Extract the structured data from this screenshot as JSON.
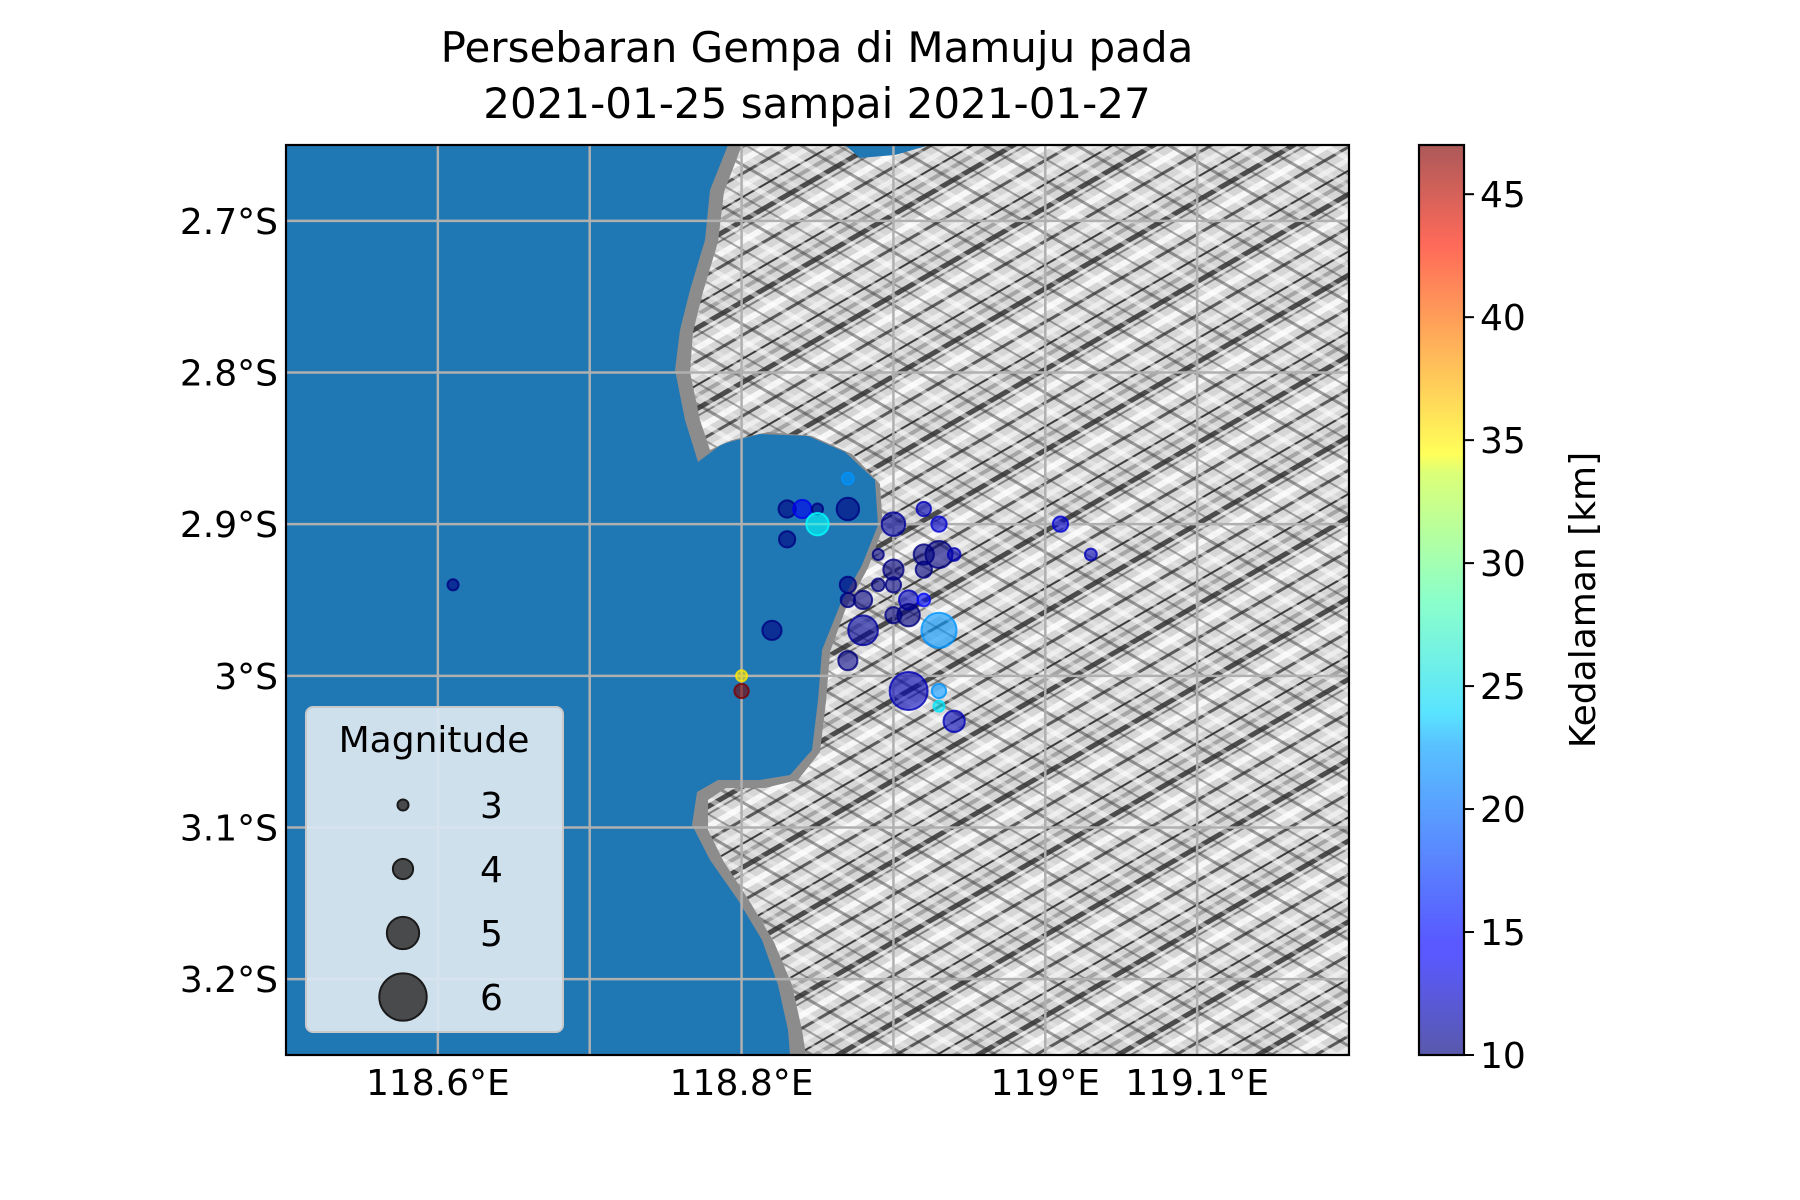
{
  "chart_data": {
    "type": "scatter",
    "title_line1": "Persebaran Gempa di Mamuju pada",
    "title_line2": "2021-01-25 sampai 2021-01-27",
    "xlim": [
      118.5,
      119.2
    ],
    "ylim": [
      -3.25,
      -2.65
    ],
    "x_ticks": [
      118.6,
      118.8,
      119.0,
      119.1
    ],
    "x_tick_labels": [
      "118.6°E",
      "118.8°E",
      "119°E",
      "119.1°E"
    ],
    "y_ticks": [
      -2.7,
      -2.8,
      -2.9,
      -3.0,
      -3.1,
      -3.2
    ],
    "y_tick_labels": [
      "2.7°S",
      "2.8°S",
      "2.9°S",
      "3°S",
      "3.1°S",
      "3.2°S"
    ],
    "grid_lons": [
      118.6,
      118.7,
      118.8,
      118.9,
      119.0,
      119.1
    ],
    "grid_lats": [
      -2.7,
      -2.8,
      -2.9,
      -3.0,
      -3.1,
      -3.2
    ],
    "grid": true,
    "colorbar": {
      "label": "Kedalaman [km]",
      "min": 10,
      "max": 47,
      "ticks": [
        10,
        15,
        20,
        25,
        30,
        35,
        40,
        45
      ],
      "colormap": "jet"
    },
    "legend": {
      "title": "Magnitude",
      "position": "lower-left",
      "entries": [
        {
          "label": "3",
          "magnitude": 3
        },
        {
          "label": "4",
          "magnitude": 4
        },
        {
          "label": "5",
          "magnitude": 5
        },
        {
          "label": "6",
          "magnitude": 6
        }
      ]
    },
    "colors": {
      "sea": "#1f77b4",
      "land": "#cfcfcf",
      "land_shadow": "#8a8a8a",
      "grid": "#b0b0b0",
      "legend_bg": "#d9e6f0"
    },
    "points": [
      {
        "lon": 118.61,
        "lat": -2.94,
        "depth": 10,
        "mag": 3.0
      },
      {
        "lon": 118.8,
        "lat": -3.0,
        "depth": 34,
        "mag": 3.0
      },
      {
        "lon": 118.8,
        "lat": -3.01,
        "depth": 47,
        "mag": 3.4
      },
      {
        "lon": 118.83,
        "lat": -2.89,
        "depth": 10,
        "mag": 3.7
      },
      {
        "lon": 118.83,
        "lat": -2.91,
        "depth": 10,
        "mag": 3.6
      },
      {
        "lon": 118.84,
        "lat": -2.89,
        "depth": 14,
        "mag": 3.8
      },
      {
        "lon": 118.85,
        "lat": -2.89,
        "depth": 10,
        "mag": 3.0
      },
      {
        "lon": 118.85,
        "lat": -2.9,
        "depth": 24,
        "mag": 4.2
      },
      {
        "lon": 118.87,
        "lat": -2.87,
        "depth": 20,
        "mag": 3.1
      },
      {
        "lon": 118.87,
        "lat": -2.89,
        "depth": 10,
        "mag": 4.2
      },
      {
        "lon": 118.82,
        "lat": -2.97,
        "depth": 10,
        "mag": 3.9
      },
      {
        "lon": 118.87,
        "lat": -2.94,
        "depth": 10,
        "mag": 3.6
      },
      {
        "lon": 118.87,
        "lat": -2.95,
        "depth": 10,
        "mag": 3.4
      },
      {
        "lon": 118.88,
        "lat": -2.95,
        "depth": 10,
        "mag": 3.8
      },
      {
        "lon": 118.88,
        "lat": -2.97,
        "depth": 11,
        "mag": 4.8
      },
      {
        "lon": 118.87,
        "lat": -2.99,
        "depth": 10,
        "mag": 3.9
      },
      {
        "lon": 118.89,
        "lat": -2.92,
        "depth": 10,
        "mag": 3.0
      },
      {
        "lon": 118.89,
        "lat": -2.94,
        "depth": 10,
        "mag": 3.2
      },
      {
        "lon": 118.9,
        "lat": -2.9,
        "depth": 11,
        "mag": 4.3
      },
      {
        "lon": 118.9,
        "lat": -2.93,
        "depth": 10,
        "mag": 4.0
      },
      {
        "lon": 118.9,
        "lat": -2.94,
        "depth": 10,
        "mag": 3.5
      },
      {
        "lon": 118.9,
        "lat": -2.96,
        "depth": 10,
        "mag": 3.6
      },
      {
        "lon": 118.91,
        "lat": -2.95,
        "depth": 12,
        "mag": 3.9
      },
      {
        "lon": 118.91,
        "lat": -2.96,
        "depth": 10,
        "mag": 4.2
      },
      {
        "lon": 118.92,
        "lat": -2.89,
        "depth": 12,
        "mag": 3.4
      },
      {
        "lon": 118.92,
        "lat": -2.92,
        "depth": 10,
        "mag": 4.0
      },
      {
        "lon": 118.92,
        "lat": -2.93,
        "depth": 10,
        "mag": 3.6
      },
      {
        "lon": 118.92,
        "lat": -2.95,
        "depth": 15,
        "mag": 3.2
      },
      {
        "lon": 118.93,
        "lat": -2.9,
        "depth": 13,
        "mag": 3.5
      },
      {
        "lon": 118.93,
        "lat": -2.92,
        "depth": 10,
        "mag": 4.6
      },
      {
        "lon": 118.94,
        "lat": -2.92,
        "depth": 12,
        "mag": 3.2
      },
      {
        "lon": 118.93,
        "lat": -2.97,
        "depth": 20,
        "mag": 5.2
      },
      {
        "lon": 118.91,
        "lat": -3.01,
        "depth": 12,
        "mag": 5.4
      },
      {
        "lon": 118.93,
        "lat": -3.01,
        "depth": 20,
        "mag": 3.4
      },
      {
        "lon": 118.93,
        "lat": -3.02,
        "depth": 23,
        "mag": 3.0
      },
      {
        "lon": 118.94,
        "lat": -3.03,
        "depth": 12,
        "mag": 4.1
      },
      {
        "lon": 119.01,
        "lat": -2.9,
        "depth": 13,
        "mag": 3.5
      },
      {
        "lon": 119.03,
        "lat": -2.92,
        "depth": 12,
        "mag": 3.1
      }
    ]
  }
}
